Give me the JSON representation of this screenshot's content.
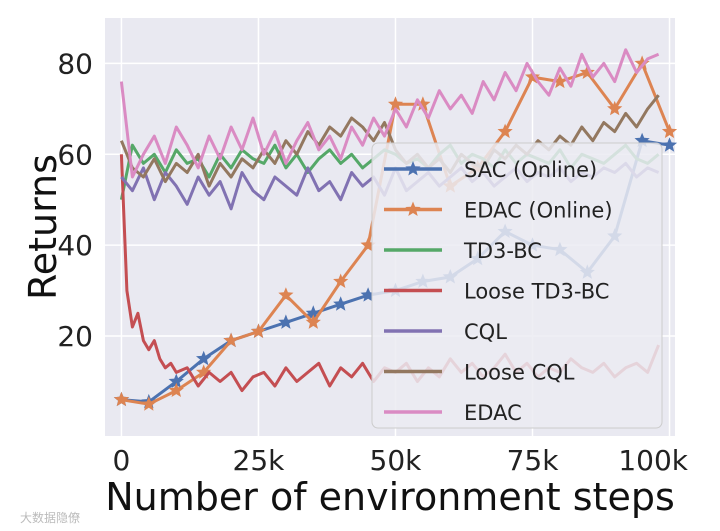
{
  "chart_data": {
    "type": "line",
    "title": "",
    "xlabel": "Number of environment steps",
    "ylabel": "Returns",
    "xlim": [
      -3000,
      101000
    ],
    "ylim": [
      -2,
      90
    ],
    "x_ticks": [
      0,
      25000,
      50000,
      75000,
      100000
    ],
    "x_tick_labels": [
      "0",
      "25k",
      "50k",
      "75k",
      "100k"
    ],
    "y_ticks": [
      20,
      40,
      60,
      80
    ],
    "y_tick_labels": [
      "20",
      "40",
      "60",
      "80"
    ],
    "grid": true,
    "legend_position": "center-right",
    "series": [
      {
        "name": "SAC (Online)",
        "color": "#4c72b0",
        "marker": "star",
        "x": [
          0,
          5000,
          10000,
          15000,
          20000,
          25000,
          30000,
          35000,
          40000,
          45000,
          50000,
          55000,
          60000,
          65000,
          70000,
          75000,
          80000,
          85000,
          90000,
          95000,
          100000
        ],
        "y": [
          6,
          5.5,
          10,
          15,
          19,
          21,
          23,
          25,
          27,
          29,
          30,
          32,
          33,
          37,
          43,
          40,
          39,
          34,
          42,
          63,
          62
        ]
      },
      {
        "name": "EDAC (Online)",
        "color": "#dd8452",
        "marker": "star",
        "x": [
          0,
          5000,
          10000,
          15000,
          20000,
          25000,
          30000,
          35000,
          40000,
          45000,
          50000,
          55000,
          60000,
          65000,
          70000,
          75000,
          80000,
          85000,
          90000,
          95000,
          100000
        ],
        "y": [
          6,
          5,
          8,
          12,
          19,
          21,
          29,
          23,
          32,
          40,
          71,
          71,
          53,
          57,
          65,
          77,
          76,
          78,
          70,
          80,
          65
        ]
      },
      {
        "name": "TD3-BC",
        "color": "#55a868",
        "marker": "none",
        "x": [
          0,
          2000,
          4000,
          6000,
          8000,
          10000,
          12000,
          14000,
          16000,
          18000,
          20000,
          22000,
          24000,
          26000,
          28000,
          30000,
          32000,
          34000,
          36000,
          38000,
          40000,
          42000,
          44000,
          46000,
          48000,
          50000,
          52000,
          54000,
          56000,
          58000,
          60000,
          62000,
          64000,
          66000,
          68000,
          70000,
          72000,
          74000,
          76000,
          78000,
          80000,
          82000,
          84000,
          86000,
          88000,
          90000,
          92000,
          94000,
          96000,
          98000
        ],
        "y": [
          50,
          62,
          58,
          60,
          56,
          61,
          58,
          59,
          55,
          60,
          57,
          61,
          59,
          58,
          62,
          57,
          60,
          56,
          59,
          61,
          58,
          60,
          57,
          59,
          61,
          60,
          58,
          59,
          57,
          60,
          62,
          58,
          60,
          59,
          57,
          61,
          58,
          60,
          59,
          58,
          61,
          57,
          60,
          59,
          58,
          60,
          62,
          59,
          58,
          60
        ]
      },
      {
        "name": "Loose TD3-BC",
        "color": "#c44e52",
        "marker": "none",
        "x": [
          0,
          1000,
          2000,
          3000,
          4000,
          5000,
          6000,
          7000,
          8000,
          9000,
          10000,
          12000,
          14000,
          16000,
          18000,
          20000,
          22000,
          24000,
          26000,
          28000,
          30000,
          32000,
          34000,
          36000,
          38000,
          40000,
          42000,
          44000,
          46000,
          48000,
          50000,
          52000,
          54000,
          56000,
          58000,
          60000,
          62000,
          64000,
          66000,
          68000,
          70000,
          72000,
          74000,
          76000,
          78000,
          80000,
          82000,
          84000,
          86000,
          88000,
          90000,
          92000,
          94000,
          96000,
          98000
        ],
        "y": [
          60,
          30,
          22,
          25,
          19,
          17,
          19,
          15,
          13,
          14,
          12,
          13,
          9,
          12,
          10,
          12,
          8,
          11,
          12,
          9,
          13,
          10,
          12,
          14,
          9,
          13,
          11,
          14,
          10,
          13,
          12,
          14,
          10,
          13,
          11,
          15,
          12,
          14,
          11,
          13,
          16,
          12,
          14,
          11,
          13,
          12,
          15,
          13,
          12,
          14,
          11,
          13,
          14,
          12,
          18
        ]
      },
      {
        "name": "CQL",
        "color": "#8172b2",
        "marker": "none",
        "x": [
          0,
          2000,
          4000,
          6000,
          8000,
          10000,
          12000,
          14000,
          16000,
          18000,
          20000,
          22000,
          24000,
          26000,
          28000,
          30000,
          32000,
          34000,
          36000,
          38000,
          40000,
          42000,
          44000,
          46000,
          48000,
          50000,
          52000,
          54000,
          56000,
          58000,
          60000,
          62000,
          64000,
          66000,
          68000,
          70000,
          72000,
          74000,
          76000,
          78000,
          80000,
          82000,
          84000,
          86000,
          88000,
          90000,
          92000,
          94000,
          96000,
          98000
        ],
        "y": [
          55,
          52,
          57,
          50,
          56,
          53,
          49,
          55,
          51,
          54,
          48,
          56,
          52,
          50,
          55,
          53,
          51,
          57,
          52,
          54,
          50,
          56,
          53,
          55,
          51,
          57,
          52,
          54,
          56,
          53,
          55,
          57,
          54,
          56,
          53,
          55,
          57,
          54,
          56,
          55,
          57,
          54,
          56,
          55,
          57,
          56,
          58,
          55,
          57,
          56
        ]
      },
      {
        "name": "Loose CQL",
        "color": "#937860",
        "marker": "none",
        "x": [
          0,
          2000,
          4000,
          6000,
          8000,
          10000,
          12000,
          14000,
          16000,
          18000,
          20000,
          22000,
          24000,
          26000,
          28000,
          30000,
          32000,
          34000,
          36000,
          38000,
          40000,
          42000,
          44000,
          46000,
          48000,
          50000,
          52000,
          54000,
          56000,
          58000,
          60000,
          62000,
          64000,
          66000,
          68000,
          70000,
          72000,
          74000,
          76000,
          78000,
          80000,
          82000,
          84000,
          86000,
          88000,
          90000,
          92000,
          94000,
          96000,
          98000
        ],
        "y": [
          63,
          57,
          55,
          59,
          54,
          58,
          56,
          60,
          53,
          58,
          55,
          59,
          57,
          61,
          58,
          63,
          60,
          65,
          62,
          66,
          64,
          68,
          66,
          63,
          67,
          61,
          58,
          60,
          57,
          59,
          56,
          60,
          58,
          57,
          61,
          59,
          62,
          60,
          63,
          61,
          64,
          62,
          66,
          63,
          67,
          65,
          69,
          66,
          70,
          73
        ]
      },
      {
        "name": "EDAC",
        "color": "#da8bc3",
        "marker": "none",
        "x": [
          0,
          2000,
          4000,
          6000,
          8000,
          10000,
          12000,
          14000,
          16000,
          18000,
          20000,
          22000,
          24000,
          26000,
          28000,
          30000,
          32000,
          34000,
          36000,
          38000,
          40000,
          42000,
          44000,
          46000,
          48000,
          50000,
          52000,
          54000,
          56000,
          58000,
          60000,
          62000,
          64000,
          66000,
          68000,
          70000,
          72000,
          74000,
          76000,
          78000,
          80000,
          82000,
          84000,
          86000,
          88000,
          90000,
          92000,
          94000,
          96000,
          98000
        ],
        "y": [
          76,
          55,
          60,
          64,
          58,
          66,
          62,
          57,
          64,
          59,
          66,
          61,
          68,
          60,
          65,
          58,
          63,
          67,
          61,
          64,
          59,
          66,
          62,
          68,
          64,
          70,
          66,
          72,
          68,
          74,
          70,
          73,
          69,
          76,
          72,
          78,
          74,
          80,
          76,
          73,
          79,
          75,
          82,
          77,
          80,
          76,
          83,
          78,
          81,
          82
        ]
      }
    ]
  },
  "watermark": "大数据隐僚"
}
